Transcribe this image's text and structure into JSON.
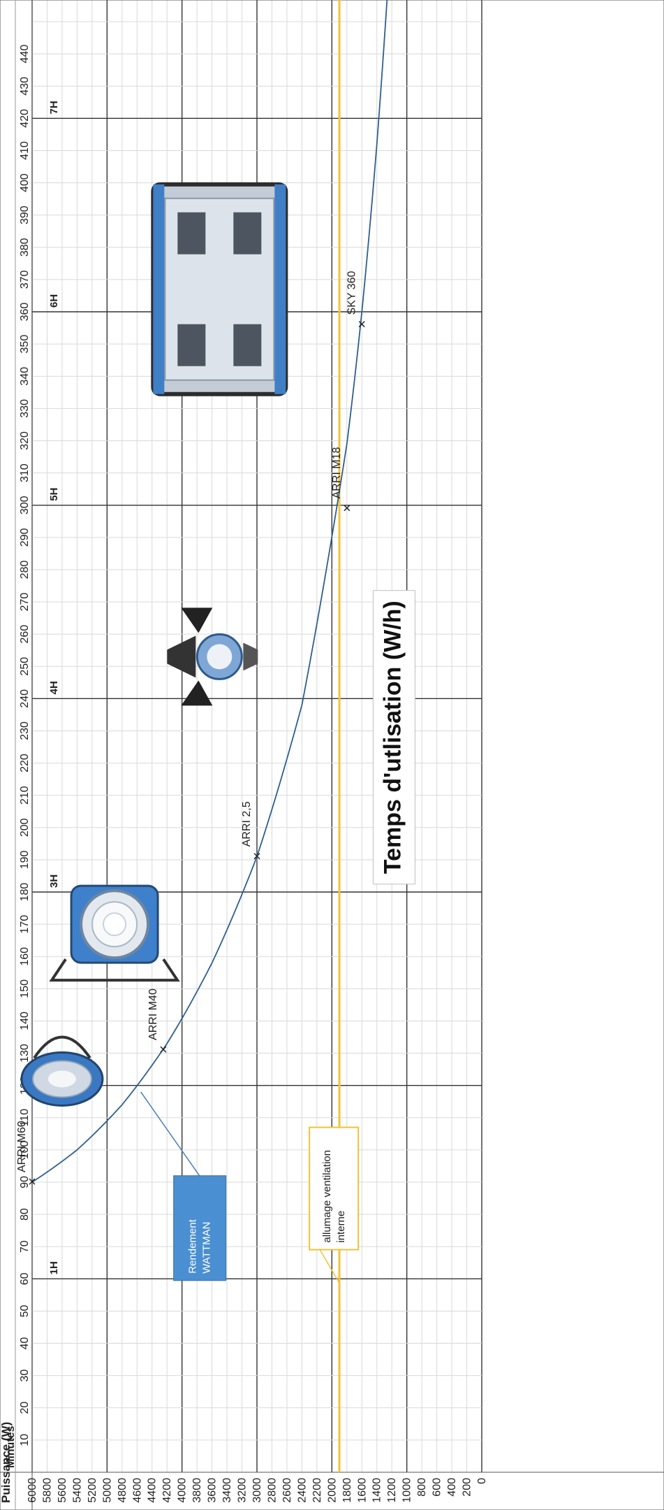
{
  "chart_data": {
    "type": "line",
    "title": "Temps d'utlisation (W/h)",
    "xlabel": "Puissance (W)",
    "ylabel": "Minutes",
    "xlim": [
      0,
      6000
    ],
    "ylim": [
      0,
      440
    ],
    "x_ticks": [
      6000,
      5800,
      5600,
      5400,
      5200,
      5000,
      4800,
      4600,
      4400,
      4200,
      4000,
      3800,
      3600,
      3400,
      3200,
      3000,
      2800,
      2600,
      2400,
      2200,
      2000,
      1800,
      1600,
      1400,
      1200,
      1000,
      800,
      600,
      400,
      200,
      0
    ],
    "y_ticks": [
      10,
      20,
      30,
      40,
      50,
      60,
      70,
      80,
      90,
      100,
      110,
      120,
      130,
      140,
      150,
      160,
      170,
      180,
      190,
      200,
      210,
      220,
      230,
      240,
      250,
      260,
      270,
      280,
      290,
      300,
      310,
      320,
      330,
      340,
      350,
      360,
      370,
      380,
      390,
      400,
      410,
      420,
      430,
      440
    ],
    "hour_markers": [
      {
        "minutes": 60,
        "label": "1H"
      },
      {
        "minutes": 120,
        "label": "2H"
      },
      {
        "minutes": 180,
        "label": "3H"
      },
      {
        "minutes": 240,
        "label": "4H"
      },
      {
        "minutes": 300,
        "label": "5H"
      },
      {
        "minutes": 360,
        "label": "6H"
      },
      {
        "minutes": 420,
        "label": "7H"
      }
    ],
    "series": [
      {
        "name": "Rendement WATTMAN",
        "color": "#2e5f8f",
        "x": [
          6000,
          5400,
          4800,
          4200,
          3600,
          3000,
          2400,
          1800,
          1600,
          1400,
          1200
        ],
        "y": [
          90,
          100,
          114,
          133,
          158,
          191,
          238,
          319,
          360,
          412,
          480
        ]
      }
    ],
    "points": [
      {
        "label": "ARRI M60",
        "x": 6000,
        "y": 90
      },
      {
        "label": "ARRI M40",
        "x": 4250,
        "y": 131
      },
      {
        "label": "ARRI 2,5",
        "x": 3000,
        "y": 191
      },
      {
        "label": "ARRI M18",
        "x": 1800,
        "y": 299
      },
      {
        "label": "SKY 360",
        "x": 1600,
        "y": 356
      }
    ],
    "threshold": {
      "x": 1900,
      "color": "#f2c23a"
    },
    "callouts": {
      "wattman": {
        "lines": [
          "Rendement",
          "WATTMAN"
        ],
        "color": "#4a8fd1"
      },
      "ventilation": {
        "lines": [
          "allumage ventilation",
          "interne"
        ],
        "color": "#f2c23a"
      }
    },
    "images": [
      "arri-m60-lamp",
      "arri-m40-lamp",
      "arri-2-5-lamp",
      "sky-360-panel"
    ],
    "grid": true,
    "major_grid_x_every": 1000,
    "major_grid_y_every": 60
  }
}
